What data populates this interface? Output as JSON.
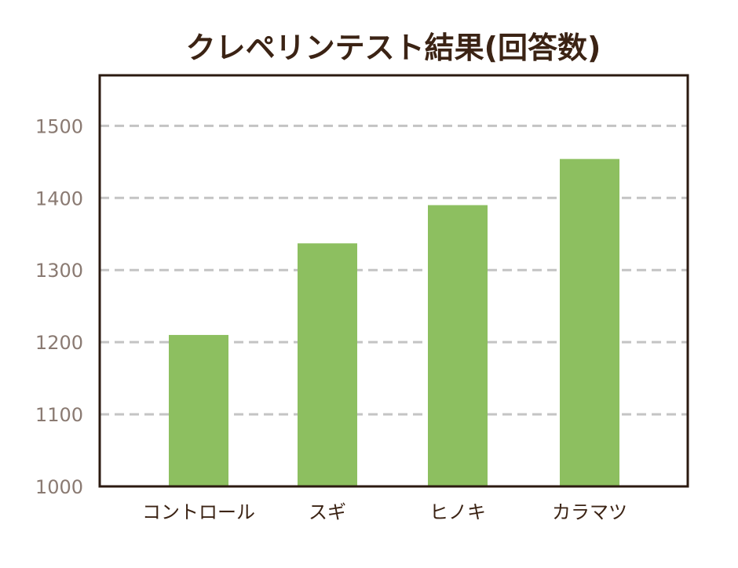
{
  "chart_data": {
    "type": "bar",
    "title": "クレペリンテスト結果(回答数)",
    "categories": [
      "コントロール",
      "スギ",
      "ヒノキ",
      "カラマツ"
    ],
    "values": [
      1210,
      1337,
      1390,
      1454
    ],
    "ylim": [
      1000,
      1570
    ],
    "yticks": [
      1000,
      1100,
      1200,
      1300,
      1400,
      1500
    ],
    "grid": true,
    "colors": {
      "bar": "#8dbf60",
      "frame": "#2b1a10",
      "grid": "#c4c4c4",
      "title": "#3b2314",
      "ytick": "#8a7a72",
      "xtick": "#3b2314"
    }
  }
}
